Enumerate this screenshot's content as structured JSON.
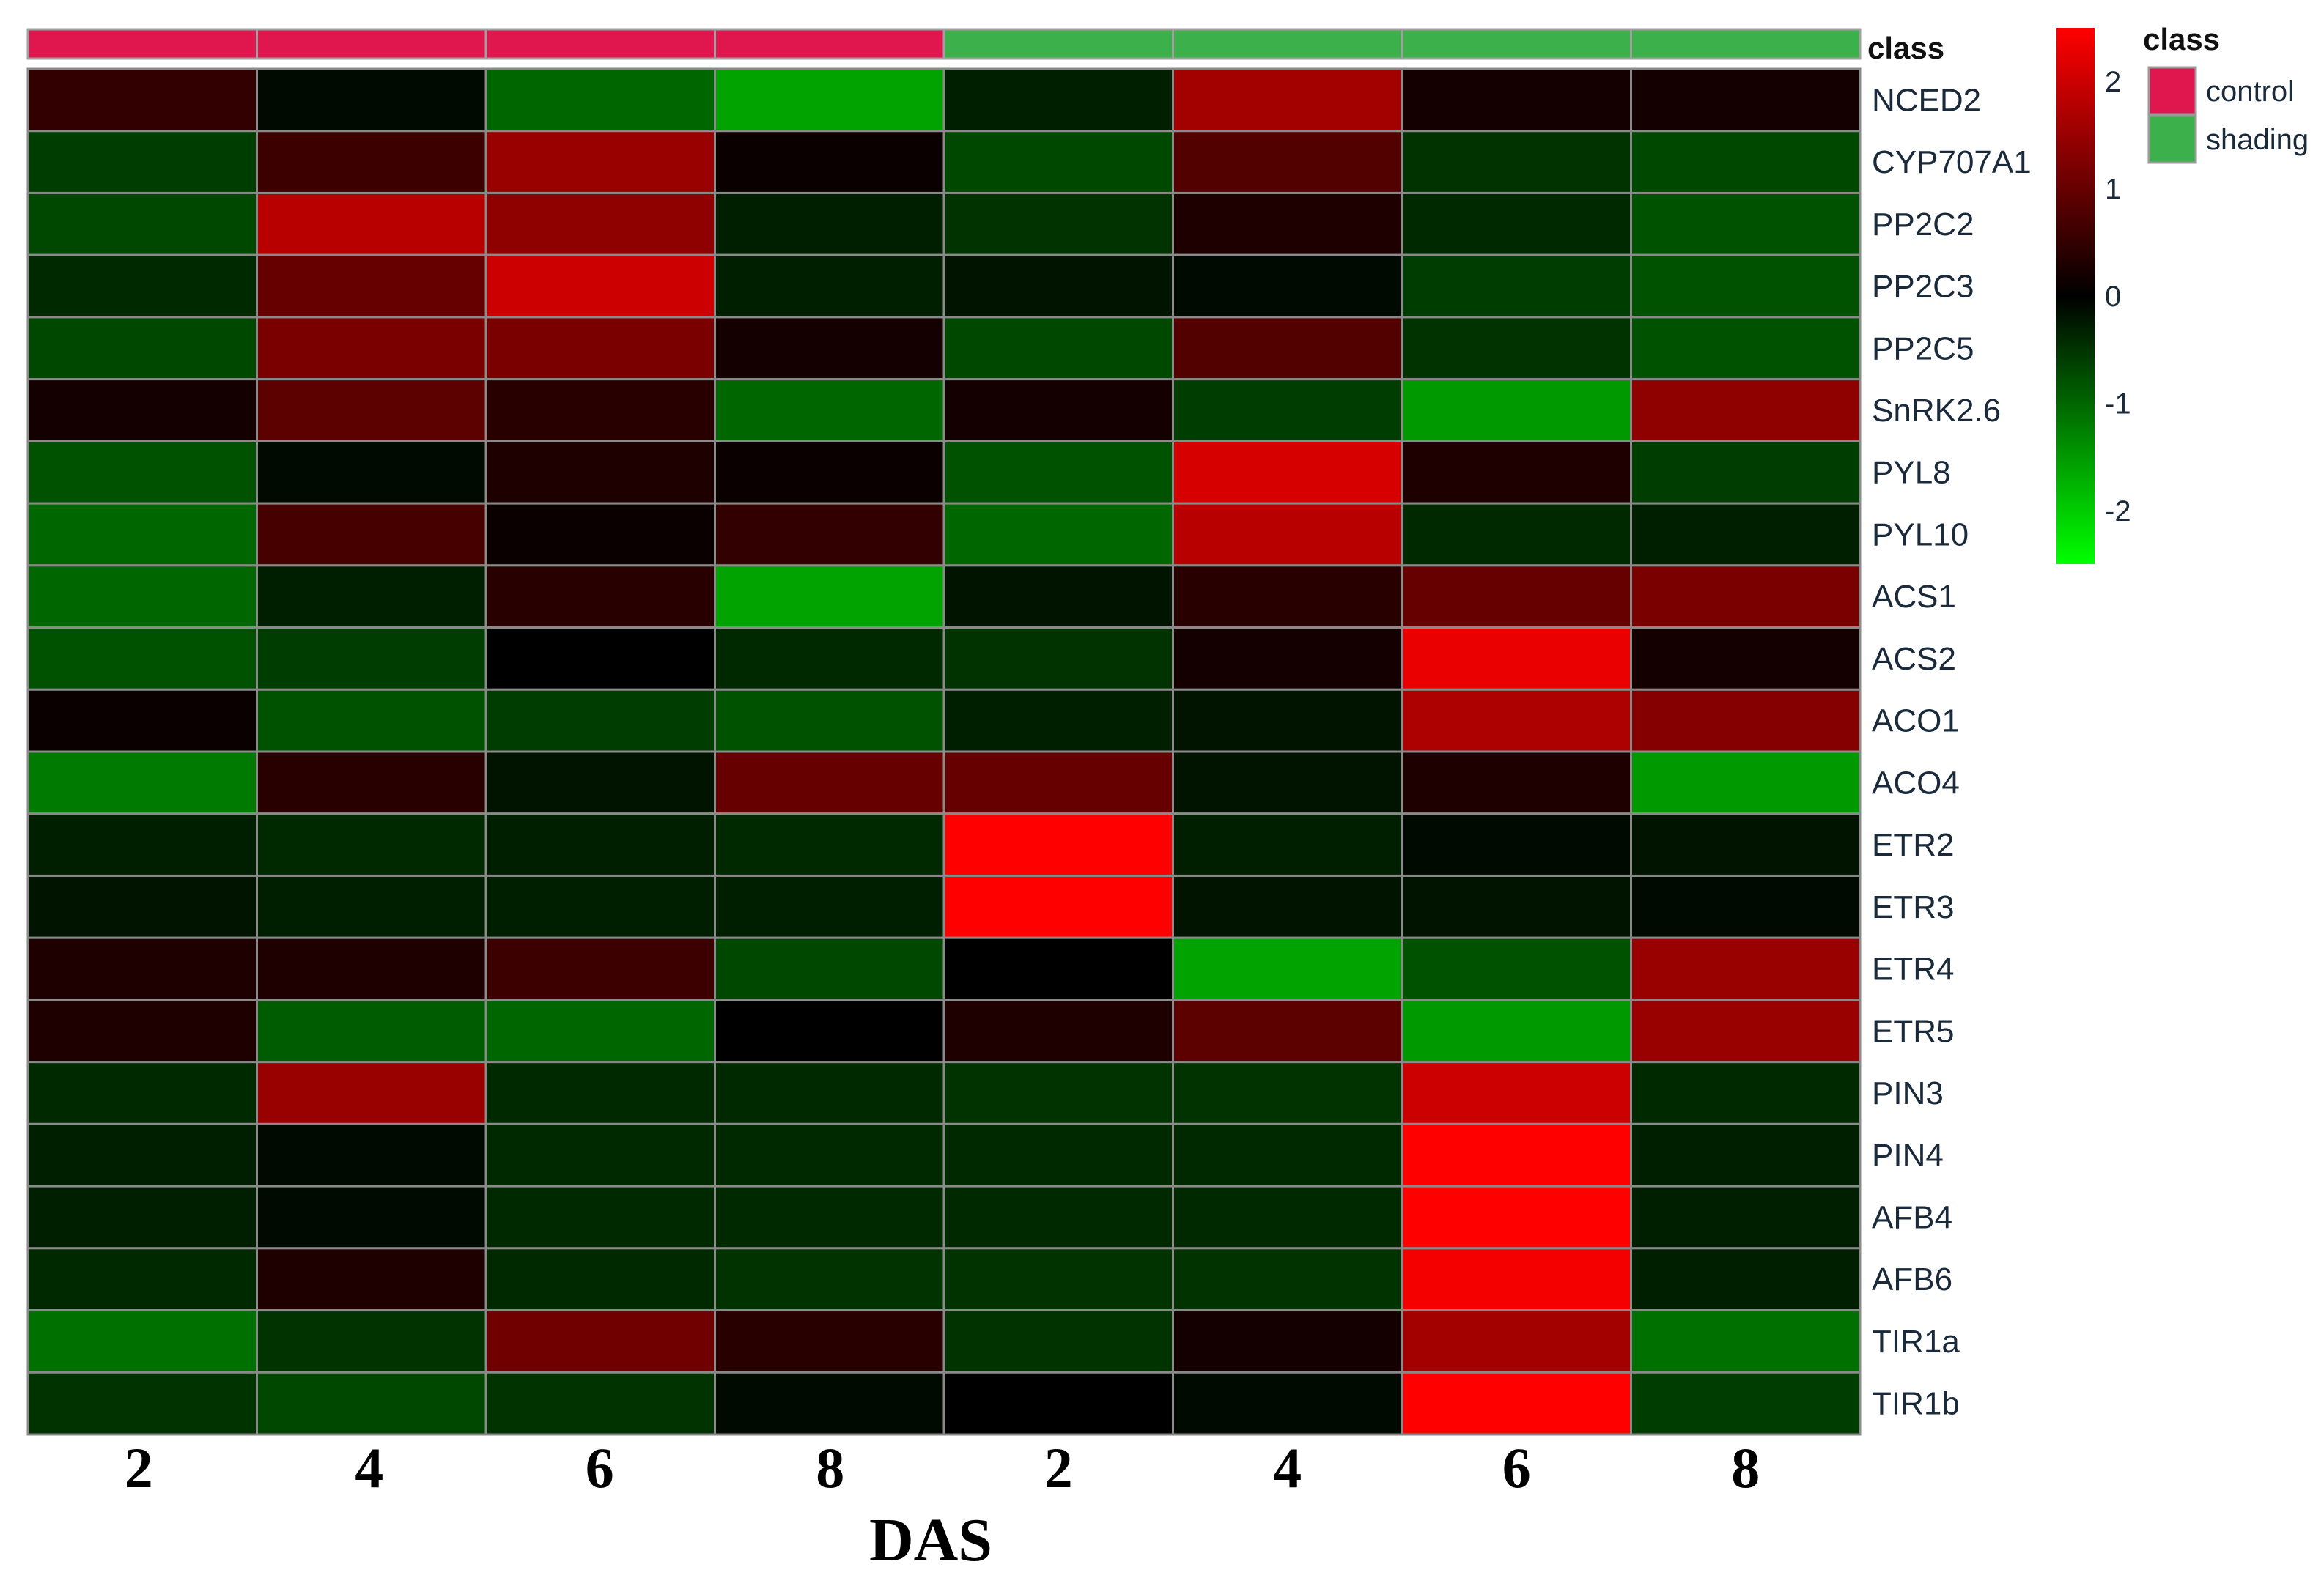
{
  "chart_data": {
    "type": "heatmap",
    "xlabel": "DAS",
    "x_ticks": [
      "2",
      "4",
      "6",
      "8",
      "2",
      "4",
      "6",
      "8"
    ],
    "column_class": [
      "control",
      "control",
      "control",
      "control",
      "shading",
      "shading",
      "shading",
      "shading"
    ],
    "class_title": "class",
    "legend_title": "class",
    "classes": [
      {
        "name": "control",
        "color": "#e0174f"
      },
      {
        "name": "shading",
        "color": "#3cb04a"
      }
    ],
    "colorscale": {
      "range": [
        -2.5,
        2.5
      ],
      "ticks": [
        2,
        1,
        0,
        -1,
        -2
      ],
      "low_color": "#00ff00",
      "mid_color": "#000000",
      "high_color": "#ff0000"
    },
    "rows": [
      "NCED2",
      "CYP707A1",
      "PP2C2",
      "PP2C3",
      "PP2C5",
      "SnRK2.6",
      "PYL8",
      "PYL10",
      "ACS1",
      "ACS2",
      "ACO1",
      "ACO4",
      "ETR2",
      "ETR3",
      "ETR4",
      "ETR5",
      "PIN3",
      "PIN4",
      "AFB4",
      "AFB6",
      "TIR1a",
      "TIR1b"
    ],
    "values": [
      [
        0.5,
        -0.1,
        -1.0,
        -1.6,
        -0.3,
        1.6,
        0.2,
        0.2
      ],
      [
        -0.6,
        0.6,
        1.5,
        0.1,
        -0.7,
        0.8,
        -0.5,
        -0.7
      ],
      [
        -0.7,
        1.8,
        1.4,
        -0.3,
        -0.5,
        0.3,
        -0.4,
        -0.8
      ],
      [
        -0.4,
        1.0,
        2.0,
        -0.3,
        -0.2,
        -0.1,
        -0.6,
        -0.8
      ],
      [
        -0.7,
        1.2,
        1.2,
        0.2,
        -0.7,
        0.8,
        -0.5,
        -0.8
      ],
      [
        0.2,
        0.9,
        0.4,
        -1.0,
        0.2,
        -0.6,
        -1.5,
        1.4
      ],
      [
        -0.8,
        -0.1,
        0.3,
        0.1,
        -0.8,
        2.1,
        0.3,
        -0.6
      ],
      [
        -1.0,
        0.7,
        0.1,
        0.5,
        -1.0,
        1.8,
        -0.4,
        -0.3
      ],
      [
        -1.0,
        -0.3,
        0.4,
        -1.6,
        -0.2,
        0.4,
        1.0,
        1.2
      ],
      [
        -0.8,
        -0.6,
        0.0,
        -0.4,
        -0.5,
        0.2,
        2.3,
        0.2
      ],
      [
        0.1,
        -0.8,
        -0.6,
        -0.8,
        -0.3,
        -0.2,
        1.7,
        1.3
      ],
      [
        -1.2,
        0.4,
        -0.2,
        1.0,
        1.0,
        -0.2,
        0.3,
        -1.5
      ],
      [
        -0.3,
        -0.4,
        -0.3,
        -0.4,
        2.5,
        -0.3,
        -0.1,
        -0.2
      ],
      [
        -0.2,
        -0.3,
        -0.3,
        -0.3,
        2.5,
        -0.2,
        -0.2,
        -0.1
      ],
      [
        0.3,
        0.3,
        0.6,
        -0.7,
        0.0,
        -1.6,
        -0.8,
        1.5
      ],
      [
        0.3,
        -0.9,
        -1.0,
        0.0,
        0.3,
        0.9,
        -1.5,
        1.5
      ],
      [
        -0.4,
        1.5,
        -0.4,
        -0.4,
        -0.5,
        -0.5,
        2.0,
        -0.4
      ],
      [
        -0.3,
        -0.1,
        -0.4,
        -0.4,
        -0.4,
        -0.4,
        2.6,
        -0.3
      ],
      [
        -0.3,
        -0.1,
        -0.4,
        -0.4,
        -0.4,
        -0.4,
        2.6,
        -0.3
      ],
      [
        -0.4,
        0.3,
        -0.4,
        -0.5,
        -0.5,
        -0.5,
        2.4,
        -0.3
      ],
      [
        -1.1,
        -0.5,
        1.1,
        0.4,
        -0.5,
        0.2,
        1.6,
        -1.1
      ],
      [
        -0.5,
        -0.7,
        -0.5,
        -0.1,
        0.0,
        -0.1,
        2.7,
        -0.6
      ]
    ]
  }
}
